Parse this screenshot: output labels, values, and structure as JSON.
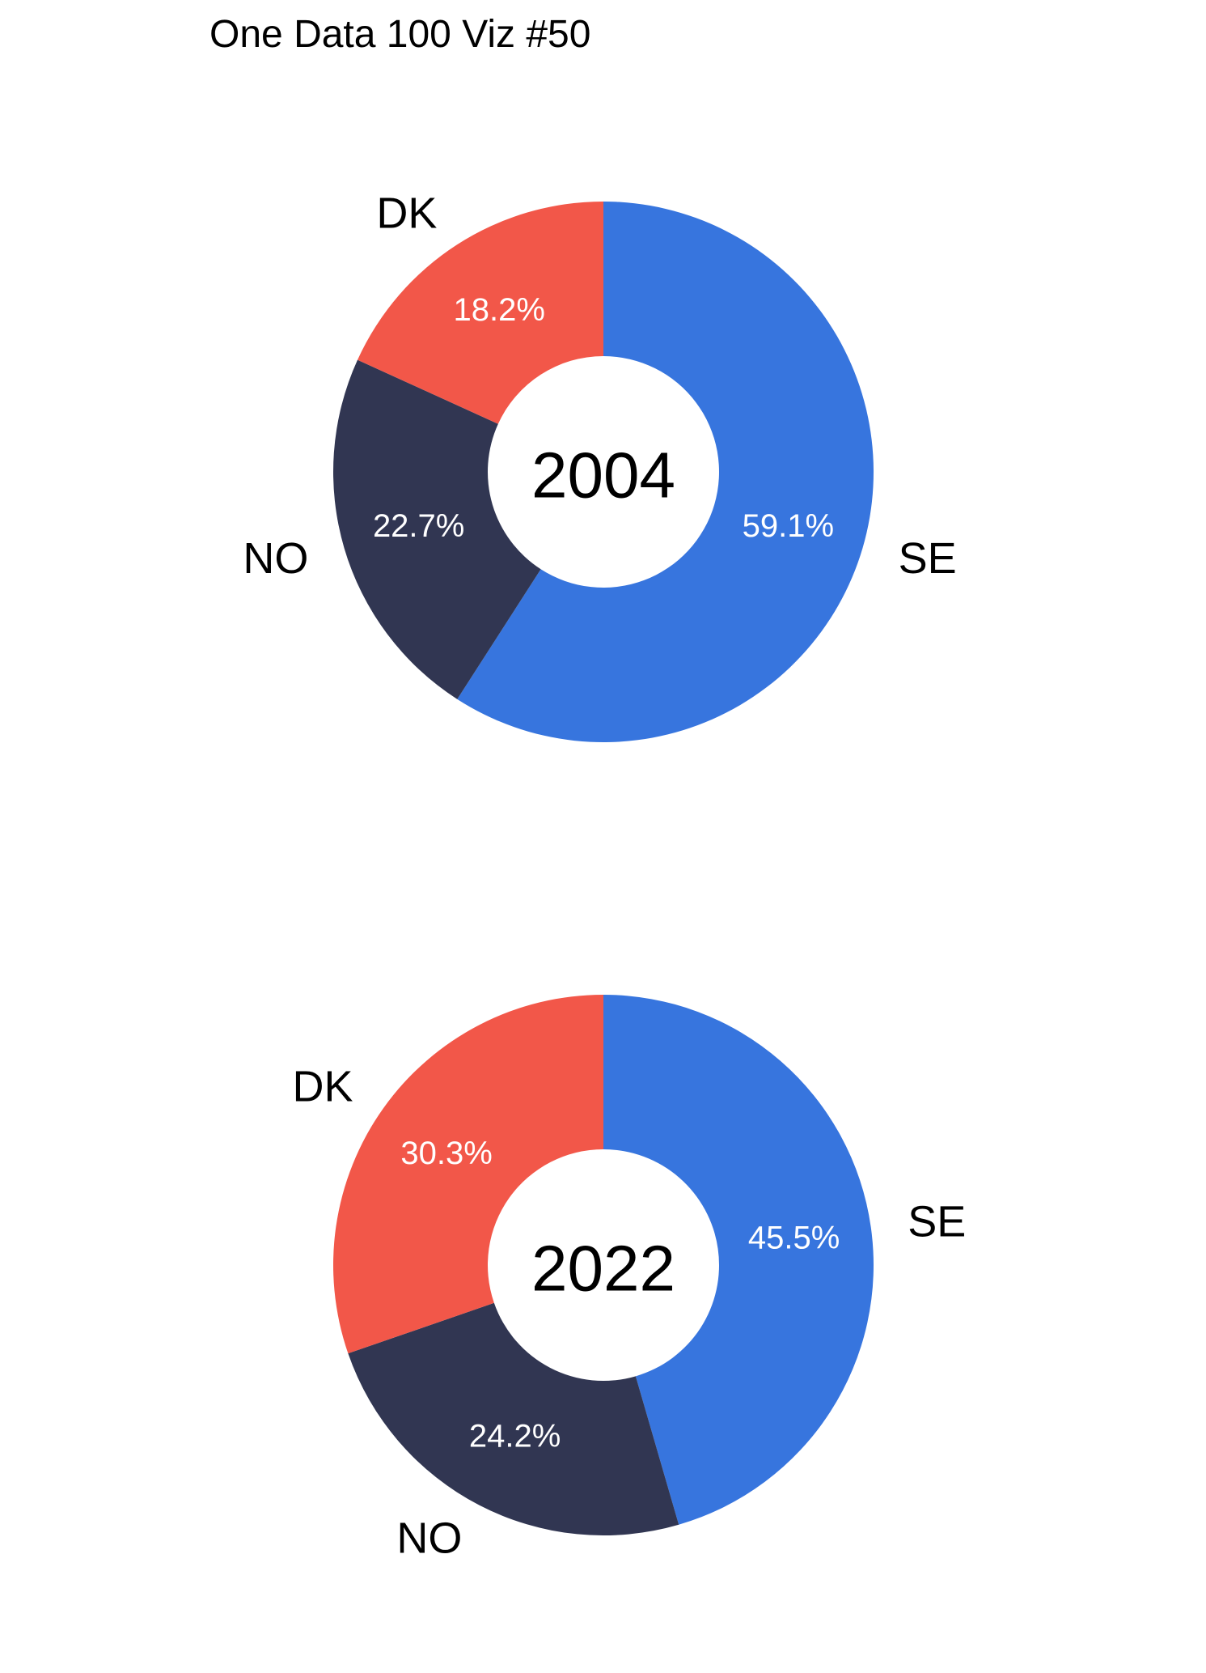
{
  "title": "One Data 100 Viz #50",
  "colors": {
    "SE": "#3775DE",
    "DK": "#F25749",
    "NO": "#313652",
    "percent_text": "#FFFFFF",
    "label_text": "#000000",
    "background": "#FFFFFF"
  },
  "chart_data": [
    {
      "type": "pie",
      "center_label": "2004",
      "categories": [
        "SE",
        "NO",
        "DK"
      ],
      "values": [
        59.1,
        22.7,
        18.2
      ],
      "data_labels": [
        "59.1%",
        "22.7%",
        "18.2%"
      ],
      "start": "12 o'clock",
      "direction": "clockwise",
      "hole": true
    },
    {
      "type": "pie",
      "center_label": "2022",
      "categories": [
        "SE",
        "NO",
        "DK"
      ],
      "values": [
        45.5,
        24.2,
        30.3
      ],
      "data_labels": [
        "45.5%",
        "24.2%",
        "30.3%"
      ],
      "start": "12 o'clock",
      "direction": "clockwise",
      "hole": true
    }
  ]
}
